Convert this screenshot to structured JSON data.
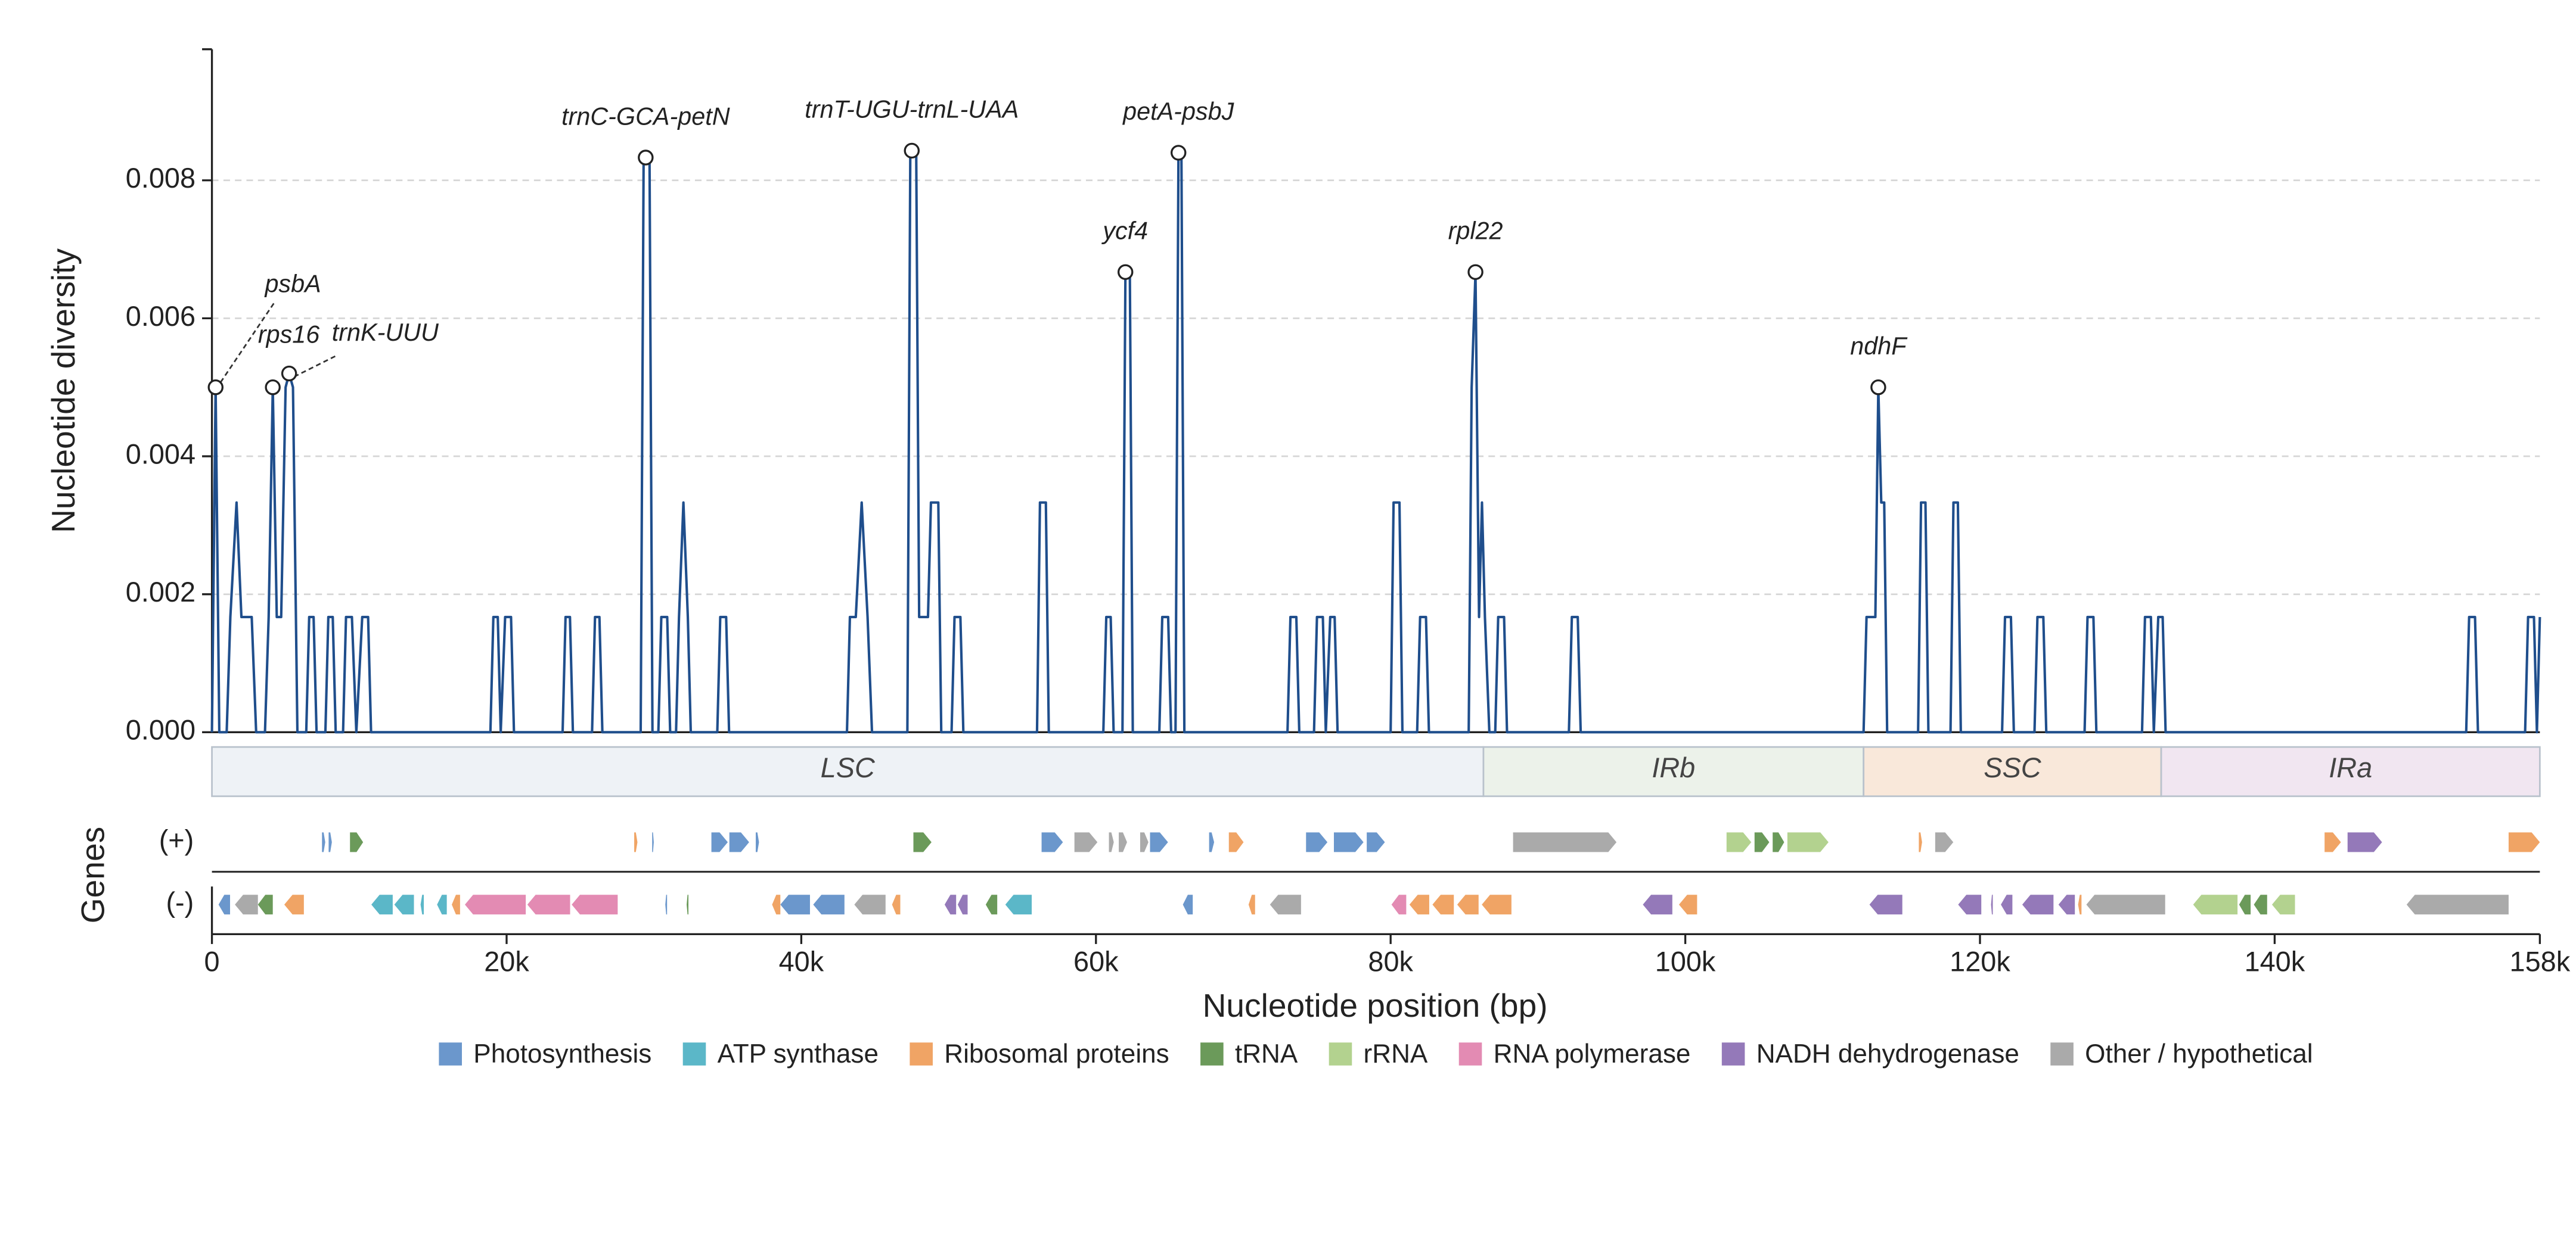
{
  "chart_data": {
    "type": "line",
    "x_label": "Nucleotide position (bp)",
    "y_label": "Nucleotide diversity",
    "color": "#1f4e8c",
    "grid": true,
    "xlim": [
      0,
      158000
    ],
    "ylim": [
      0,
      0.0099
    ],
    "xticks": [
      0,
      {
        "value": 20000,
        "label": "20k"
      },
      {
        "value": 40000,
        "label": "40k"
      },
      {
        "value": 60000,
        "label": "60k"
      },
      {
        "value": 80000,
        "label": "80k"
      },
      {
        "value": 100000,
        "label": "100k"
      },
      {
        "value": 120000,
        "label": "120k"
      },
      {
        "value": 140000,
        "label": "140k"
      },
      {
        "value": 158000,
        "label": "158k"
      }
    ],
    "yticks": [
      {
        "value": 0,
        "label": "0.000"
      },
      {
        "value": 0.002,
        "label": "0.002"
      },
      {
        "value": 0.004,
        "label": "0.004"
      },
      {
        "value": 0.006,
        "label": "0.006"
      },
      {
        "value": 0.008,
        "label": "0.008"
      }
    ],
    "x": [
      0,
      250,
      500,
      1000,
      1250,
      1670,
      2000,
      2700,
      3000,
      3600,
      3850,
      4130,
      4400,
      4700,
      5000,
      5240,
      5500,
      5800,
      6400,
      6600,
      6900,
      7100,
      7700,
      7900,
      8200,
      8400,
      8900,
      9100,
      9500,
      9800,
      10200,
      10600,
      10800,
      18900,
      19100,
      19400,
      19600,
      19900,
      20300,
      20500,
      23800,
      24000,
      24300,
      24500,
      25800,
      26000,
      26300,
      26500,
      29100,
      29300,
      29700,
      29900,
      30300,
      30500,
      30900,
      31100,
      31500,
      31700,
      32000,
      32300,
      32500,
      34300,
      34500,
      34900,
      35100,
      43100,
      43300,
      43700,
      44100,
      44500,
      44800,
      47200,
      47400,
      47800,
      48000,
      48600,
      48800,
      49300,
      49500,
      50200,
      50400,
      50800,
      51000,
      56000,
      56200,
      56600,
      56800,
      60500,
      60700,
      61000,
      61200,
      61800,
      62000,
      62300,
      62500,
      64300,
      64500,
      64900,
      65100,
      65400,
      65600,
      65800,
      66000,
      73000,
      73200,
      73600,
      73800,
      74800,
      75000,
      75400,
      75600,
      75900,
      76200,
      76400,
      80000,
      80200,
      80600,
      80800,
      81800,
      82000,
      82400,
      82600,
      85300,
      85500,
      85760,
      86000,
      86200,
      86400,
      86700,
      87100,
      87300,
      87700,
      87900,
      92100,
      92300,
      92700,
      92900,
      112100,
      112300,
      112900,
      113100,
      113300,
      113500,
      113700,
      115800,
      116000,
      116300,
      116500,
      118000,
      118200,
      118500,
      118700,
      121500,
      121700,
      122100,
      122300,
      123700,
      123900,
      124300,
      124500,
      127100,
      127300,
      127700,
      127900,
      131000,
      131200,
      131600,
      131800,
      132100,
      132400,
      132600,
      153000,
      153200,
      153600,
      153800,
      157000,
      157200,
      157600,
      157800,
      158000
    ],
    "values": [
      0,
      0.005,
      0,
      0,
      0.00167,
      0.00333,
      0.00167,
      0.00167,
      0,
      0,
      0.00167,
      0.005,
      0.00167,
      0.00167,
      0.005,
      0.0052,
      0.005,
      0,
      0,
      0.00167,
      0.00167,
      0,
      0,
      0.00167,
      0.00167,
      0,
      0,
      0.00167,
      0.00167,
      0,
      0.00167,
      0.00167,
      0,
      0,
      0.00167,
      0.00167,
      0,
      0.00167,
      0.00167,
      0,
      0,
      0.00167,
      0.00167,
      0,
      0,
      0.00167,
      0.00167,
      0,
      0,
      0.00833,
      0.00833,
      0,
      0,
      0.00167,
      0.00167,
      0,
      0,
      0.00167,
      0.00333,
      0.00167,
      0,
      0,
      0.00167,
      0.00167,
      0,
      0,
      0.00167,
      0.00167,
      0.00333,
      0.00167,
      0,
      0,
      0.00843,
      0.00843,
      0.00167,
      0.00167,
      0.00333,
      0.00333,
      0,
      0,
      0.00167,
      0.00167,
      0,
      0,
      0.00333,
      0.00333,
      0,
      0,
      0.00167,
      0.00167,
      0,
      0,
      0.00667,
      0.00667,
      0,
      0,
      0.00167,
      0.00167,
      0,
      0,
      0.0084,
      0.0084,
      0,
      0,
      0.00167,
      0.00167,
      0,
      0,
      0.00167,
      0.00167,
      0,
      0.00167,
      0.00167,
      0,
      0,
      0.00333,
      0.00333,
      0,
      0,
      0.00167,
      0.00167,
      0,
      0,
      0.005,
      0.00667,
      0.00167,
      0.00333,
      0.00167,
      0,
      0,
      0.00167,
      0.00167,
      0,
      0,
      0.00167,
      0.00167,
      0,
      0,
      0.00167,
      0.00167,
      0.005,
      0.00333,
      0.00333,
      0,
      0,
      0.00333,
      0.00333,
      0,
      0,
      0.00333,
      0.00333,
      0,
      0,
      0.00167,
      0.00167,
      0,
      0,
      0.00167,
      0.00167,
      0,
      0,
      0.00167,
      0.00167,
      0,
      0,
      0.00167,
      0.00167,
      0,
      0.00167,
      0.00167,
      0,
      0,
      0.00167,
      0.00167,
      0,
      0,
      0.00167,
      0.00167,
      0,
      0.00167
    ],
    "annotations": [
      {
        "label": "psbA",
        "x": 250,
        "y": 0.005
      },
      {
        "label": "rps16",
        "x": 4130,
        "y": 0.005
      },
      {
        "label": "trnK-UUU",
        "x": 5240,
        "y": 0.0052
      },
      {
        "label": "trnC-GCA-petN",
        "x": 29440,
        "y": 0.00833
      },
      {
        "label": "trnT-UGU-trnL-UAA",
        "x": 47500,
        "y": 0.00843
      },
      {
        "label": "ycf4",
        "x": 62000,
        "y": 0.00667
      },
      {
        "label": "petA-psbJ",
        "x": 65600,
        "y": 0.0084
      },
      {
        "label": "rpl22",
        "x": 85760,
        "y": 0.00667
      },
      {
        "label": "ndhF",
        "x": 113100,
        "y": 0.005
      }
    ],
    "regions": [
      {
        "name": "LSC",
        "start": 0,
        "end": 86300,
        "color": "#eef2f6"
      },
      {
        "name": "IRb",
        "start": 86300,
        "end": 112100,
        "color": "#ecf2ea"
      },
      {
        "name": "SSC",
        "start": 112100,
        "end": 132300,
        "color": "#f9e8da"
      },
      {
        "name": "IRa",
        "start": 132300,
        "end": 158000,
        "color": "#f1e6f1"
      }
    ],
    "gene_track": {
      "title": "Genes",
      "strands": [
        "(+)",
        "(-)"
      ],
      "categories": [
        {
          "name": "Photosynthesis",
          "color": "#6b97cc"
        },
        {
          "name": "ATP synthase",
          "color": "#5bb7c8"
        },
        {
          "name": "Ribosomal proteins",
          "color": "#f0a465"
        },
        {
          "name": "tRNA",
          "color": "#6b9a5a"
        },
        {
          "name": "rRNA",
          "color": "#b3d28f"
        },
        {
          "name": "RNA polymerase",
          "color": "#e38bb3"
        },
        {
          "name": "NADH dehydrogenase",
          "color": "#9479b9"
        },
        {
          "name": "Other / hypothetical",
          "color": "#aaaaaa"
        }
      ],
      "genes": [
        {
          "start": 7470,
          "end": 7690,
          "strand": 0,
          "category": 0
        },
        {
          "start": 7920,
          "end": 8140,
          "strand": 0,
          "category": 0
        },
        {
          "start": 9370,
          "end": 10260,
          "strand": 0,
          "category": 3
        },
        {
          "start": 28660,
          "end": 28880,
          "strand": 0,
          "category": 2
        },
        {
          "start": 29880,
          "end": 29990,
          "strand": 0,
          "category": 0
        },
        {
          "start": 33900,
          "end": 35010,
          "strand": 0,
          "category": 0
        },
        {
          "start": 35120,
          "end": 36460,
          "strand": 0,
          "category": 0
        },
        {
          "start": 36910,
          "end": 37130,
          "strand": 0,
          "category": 0
        },
        {
          "start": 47610,
          "end": 48840,
          "strand": 0,
          "category": 3
        },
        {
          "start": 56310,
          "end": 57760,
          "strand": 0,
          "category": 0
        },
        {
          "start": 58540,
          "end": 60100,
          "strand": 0,
          "category": 7
        },
        {
          "start": 60880,
          "end": 61210,
          "strand": 0,
          "category": 7
        },
        {
          "start": 61550,
          "end": 62110,
          "strand": 0,
          "category": 7
        },
        {
          "start": 63000,
          "end": 63560,
          "strand": 0,
          "category": 7
        },
        {
          "start": 63670,
          "end": 64890,
          "strand": 0,
          "category": 0
        },
        {
          "start": 67680,
          "end": 68020,
          "strand": 0,
          "category": 0
        },
        {
          "start": 69020,
          "end": 70020,
          "strand": 0,
          "category": 2
        },
        {
          "start": 74260,
          "end": 75710,
          "strand": 0,
          "category": 0
        },
        {
          "start": 76150,
          "end": 78160,
          "strand": 0,
          "category": 0
        },
        {
          "start": 78380,
          "end": 79610,
          "strand": 0,
          "category": 0
        },
        {
          "start": 88310,
          "end": 95330,
          "strand": 0,
          "category": 7
        },
        {
          "start": 102800,
          "end": 104480,
          "strand": 0,
          "category": 4
        },
        {
          "start": 104700,
          "end": 105700,
          "strand": 0,
          "category": 3
        },
        {
          "start": 105930,
          "end": 106710,
          "strand": 0,
          "category": 3
        },
        {
          "start": 106930,
          "end": 109720,
          "strand": 0,
          "category": 4
        },
        {
          "start": 115850,
          "end": 116070,
          "strand": 0,
          "category": 2
        },
        {
          "start": 116960,
          "end": 118190,
          "strand": 0,
          "category": 7
        },
        {
          "start": 143390,
          "end": 144500,
          "strand": 0,
          "category": 2
        },
        {
          "start": 144950,
          "end": 147290,
          "strand": 0,
          "category": 6
        },
        {
          "start": 155880,
          "end": 158000,
          "strand": 0,
          "category": 2
        },
        {
          "start": 450,
          "end": 1230,
          "strand": 1,
          "category": 0
        },
        {
          "start": 1560,
          "end": 3120,
          "strand": 1,
          "category": 7
        },
        {
          "start": 3120,
          "end": 4130,
          "strand": 1,
          "category": 3
        },
        {
          "start": 4910,
          "end": 6240,
          "strand": 1,
          "category": 2
        },
        {
          "start": 10820,
          "end": 12270,
          "strand": 1,
          "category": 1
        },
        {
          "start": 12380,
          "end": 13710,
          "strand": 1,
          "category": 1
        },
        {
          "start": 14160,
          "end": 14380,
          "strand": 1,
          "category": 1
        },
        {
          "start": 15280,
          "end": 15940,
          "strand": 1,
          "category": 1
        },
        {
          "start": 16280,
          "end": 16840,
          "strand": 1,
          "category": 2
        },
        {
          "start": 17170,
          "end": 21300,
          "strand": 1,
          "category": 5
        },
        {
          "start": 21410,
          "end": 24310,
          "strand": 1,
          "category": 5
        },
        {
          "start": 24420,
          "end": 27540,
          "strand": 1,
          "category": 5
        },
        {
          "start": 30770,
          "end": 30890,
          "strand": 1,
          "category": 0
        },
        {
          "start": 32220,
          "end": 32340,
          "strand": 1,
          "category": 3
        },
        {
          "start": 38020,
          "end": 38580,
          "strand": 1,
          "category": 2
        },
        {
          "start": 38580,
          "end": 40590,
          "strand": 1,
          "category": 0
        },
        {
          "start": 40810,
          "end": 42930,
          "strand": 1,
          "category": 0
        },
        {
          "start": 43600,
          "end": 45720,
          "strand": 1,
          "category": 7
        },
        {
          "start": 46160,
          "end": 46720,
          "strand": 1,
          "category": 2
        },
        {
          "start": 49730,
          "end": 50510,
          "strand": 1,
          "category": 6
        },
        {
          "start": 50620,
          "end": 51290,
          "strand": 1,
          "category": 6
        },
        {
          "start": 52520,
          "end": 53300,
          "strand": 1,
          "category": 3
        },
        {
          "start": 53850,
          "end": 55640,
          "strand": 1,
          "category": 1
        },
        {
          "start": 65900,
          "end": 66570,
          "strand": 1,
          "category": 0
        },
        {
          "start": 70360,
          "end": 70800,
          "strand": 1,
          "category": 2
        },
        {
          "start": 71810,
          "end": 73920,
          "strand": 1,
          "category": 7
        },
        {
          "start": 80060,
          "end": 81060,
          "strand": 1,
          "category": 5
        },
        {
          "start": 81280,
          "end": 82620,
          "strand": 1,
          "category": 2
        },
        {
          "start": 82840,
          "end": 84290,
          "strand": 1,
          "category": 2
        },
        {
          "start": 84520,
          "end": 85970,
          "strand": 1,
          "category": 2
        },
        {
          "start": 86190,
          "end": 88200,
          "strand": 1,
          "category": 2
        },
        {
          "start": 97120,
          "end": 99120,
          "strand": 1,
          "category": 6
        },
        {
          "start": 99570,
          "end": 100800,
          "strand": 1,
          "category": 2
        },
        {
          "start": 112500,
          "end": 114730,
          "strand": 1,
          "category": 6
        },
        {
          "start": 118520,
          "end": 120090,
          "strand": 1,
          "category": 6
        },
        {
          "start": 120750,
          "end": 120870,
          "strand": 1,
          "category": 6
        },
        {
          "start": 121420,
          "end": 122200,
          "strand": 1,
          "category": 6
        },
        {
          "start": 122870,
          "end": 124990,
          "strand": 1,
          "category": 6
        },
        {
          "start": 125330,
          "end": 126440,
          "strand": 1,
          "category": 6
        },
        {
          "start": 126660,
          "end": 126890,
          "strand": 1,
          "category": 2
        },
        {
          "start": 127220,
          "end": 132570,
          "strand": 1,
          "category": 7
        },
        {
          "start": 134470,
          "end": 137480,
          "strand": 1,
          "category": 4
        },
        {
          "start": 137590,
          "end": 138370,
          "strand": 1,
          "category": 3
        },
        {
          "start": 138590,
          "end": 139490,
          "strand": 1,
          "category": 3
        },
        {
          "start": 139820,
          "end": 141380,
          "strand": 1,
          "category": 4
        },
        {
          "start": 148960,
          "end": 155880,
          "strand": 1,
          "category": 7
        }
      ]
    }
  }
}
